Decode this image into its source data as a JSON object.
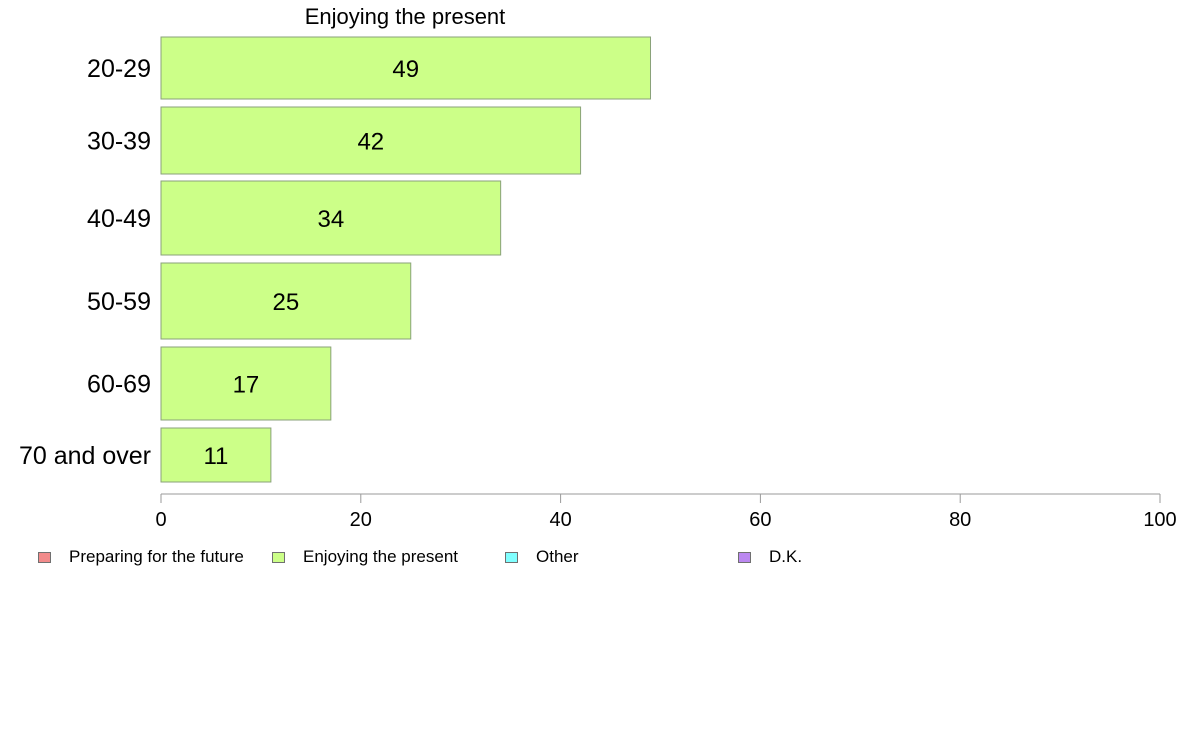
{
  "chart_data": {
    "type": "bar",
    "orientation": "horizontal",
    "title": "Enjoying the present",
    "categories": [
      "20-29",
      "30-39",
      "40-49",
      "50-59",
      "60-69",
      "70 and over"
    ],
    "series": [
      {
        "name": "Enjoying the present",
        "values": [
          49,
          42,
          34,
          25,
          17,
          11
        ],
        "color": "#ccff88"
      }
    ],
    "xlim": [
      0,
      100
    ],
    "xticks": [
      "0",
      "20",
      "40",
      "60",
      "80",
      "100"
    ],
    "grid": false,
    "legend": {
      "position": "bottom-left",
      "items": [
        {
          "label": "Preparing for the future",
          "color": "#f28b8b"
        },
        {
          "label": "Enjoying the present",
          "color": "#ccff88"
        },
        {
          "label": "Other",
          "color": "#80ffff"
        },
        {
          "label": "D.K.",
          "color": "#bb88f0"
        }
      ]
    }
  }
}
